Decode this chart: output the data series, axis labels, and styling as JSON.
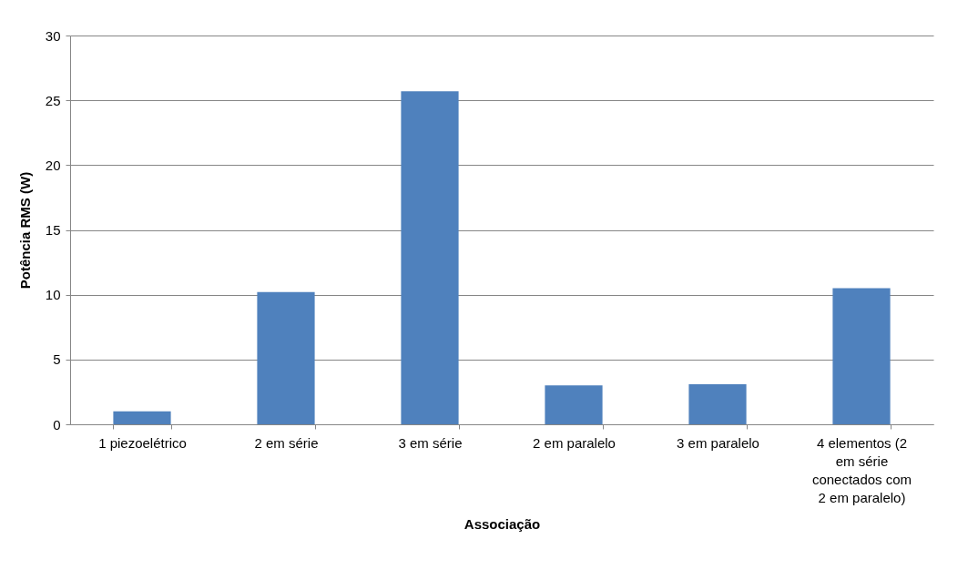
{
  "chart_data": {
    "type": "bar",
    "xlabel": "Associação",
    "ylabel": "Potência RMS (W)",
    "categories": [
      "1 piezoelétrico",
      "2 em série",
      "3 em série",
      "2 em paralelo",
      "3 em paralelo",
      "4 elementos (2 em série conectados com 2 em paralelo)"
    ],
    "values": [
      1.0,
      10.2,
      25.7,
      3.0,
      3.1,
      10.5
    ],
    "color": "#4f81bd",
    "ylim": [
      0,
      30
    ],
    "yticks": [
      0,
      5,
      10,
      15,
      20,
      25,
      30
    ],
    "grid": "y"
  }
}
